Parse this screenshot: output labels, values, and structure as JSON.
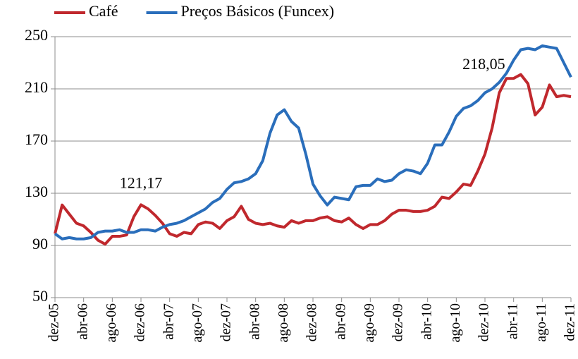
{
  "chart_data": {
    "type": "line",
    "categories": [
      "dez-05",
      null,
      null,
      null,
      "abr-06",
      null,
      null,
      null,
      "ago-06",
      null,
      null,
      null,
      "dez-06",
      null,
      null,
      null,
      "abr-07",
      null,
      null,
      null,
      "ago-07",
      null,
      null,
      null,
      "dez-07",
      null,
      null,
      null,
      "abr-08",
      null,
      null,
      null,
      "ago-08",
      null,
      null,
      null,
      "dez-08",
      null,
      null,
      null,
      "abr-09",
      null,
      null,
      null,
      "ago-09",
      null,
      null,
      null,
      "dez-09",
      null,
      null,
      null,
      "abr-10",
      null,
      null,
      null,
      "ago-10",
      null,
      null,
      null,
      "dez-10",
      null,
      null,
      null,
      "abr-11",
      null,
      null,
      null,
      "ago-11",
      null,
      null,
      null,
      "dez-11"
    ],
    "series": [
      {
        "name": "Café",
        "color": "#c0282d",
        "values": [
          99,
          121,
          114,
          107,
          105,
          100,
          94,
          91,
          97,
          97,
          98,
          112,
          121.17,
          118,
          113,
          107,
          99,
          97,
          100,
          99,
          106,
          108,
          107,
          103,
          109,
          112,
          120,
          110,
          107,
          106,
          107,
          105,
          104,
          109,
          107,
          109,
          109,
          111,
          112,
          109,
          108,
          111,
          106,
          103,
          106,
          106,
          109,
          114,
          117,
          117,
          116,
          116,
          117,
          120,
          127,
          126,
          131,
          137,
          136,
          147,
          160,
          180,
          207,
          218,
          218.05,
          221,
          214,
          190,
          196,
          213,
          204,
          205,
          204
        ],
        "value_labels": [
          null,
          null,
          null,
          null,
          null,
          null,
          null,
          null,
          null,
          null,
          null,
          null,
          "121,17",
          null,
          null,
          null,
          null,
          null,
          null,
          null,
          null,
          null,
          null,
          null,
          null,
          null,
          null,
          null,
          null,
          null,
          null,
          null,
          null,
          null,
          null,
          null,
          null,
          null,
          null,
          null,
          null,
          null,
          null,
          null,
          null,
          null,
          null,
          null,
          null,
          null,
          null,
          null,
          null,
          null,
          null,
          null,
          null,
          null,
          null,
          null,
          null,
          null,
          null,
          null,
          "218,05",
          null,
          null,
          null,
          null,
          null,
          null,
          null,
          null
        ]
      },
      {
        "name": "Preços Básicos (Funcex)",
        "color": "#2a6ebb",
        "values": [
          99,
          95,
          96,
          95,
          95,
          96,
          100,
          101,
          101,
          102,
          100,
          100,
          102,
          102,
          101,
          104,
          106,
          107,
          109,
          112,
          115,
          118,
          123,
          126,
          133,
          138,
          139,
          141,
          145,
          155,
          176,
          190,
          194,
          185,
          180,
          160,
          137,
          128,
          121,
          127,
          126,
          125,
          135,
          136,
          136,
          141,
          139,
          140,
          145,
          148,
          147,
          145,
          153,
          167,
          167,
          177,
          189,
          195,
          197,
          201,
          207,
          210,
          215,
          222,
          232,
          240,
          241,
          240,
          243,
          242,
          241,
          230,
          219
        ]
      }
    ],
    "ylim": [
      50,
      250
    ],
    "yticks": [
      50,
      90,
      130,
      170,
      210,
      250
    ],
    "grid": true,
    "legend": "top"
  }
}
